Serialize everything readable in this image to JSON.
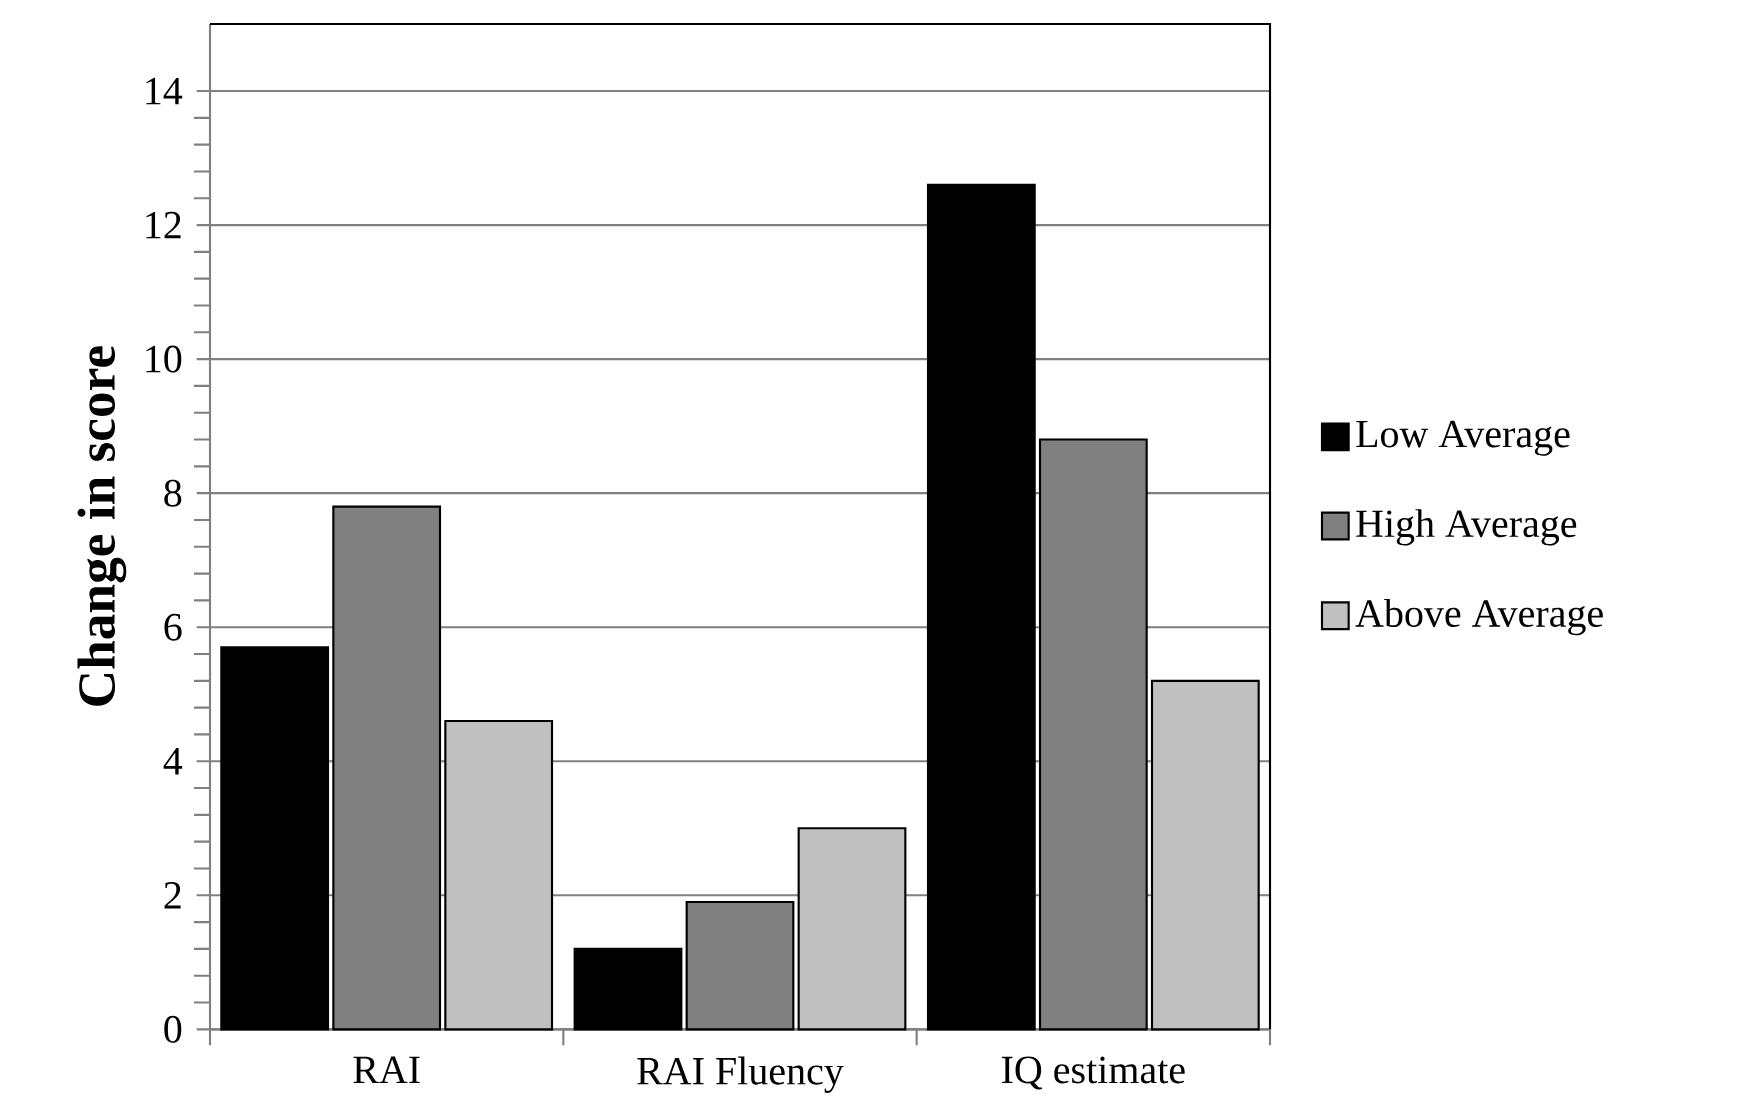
{
  "chart_data": {
    "type": "bar",
    "ylabel": "Change in score",
    "categories": [
      "RAI",
      "RAI Fluency",
      "IQ estimate"
    ],
    "series": [
      {
        "name": "Low Average",
        "color": "#000000",
        "values": [
          5.7,
          1.2,
          12.6
        ]
      },
      {
        "name": "High Average",
        "color": "#808080",
        "values": [
          7.8,
          1.9,
          8.8
        ]
      },
      {
        "name": "Above Average",
        "color": "#c0c0c0",
        "values": [
          4.6,
          3.0,
          5.2
        ]
      }
    ],
    "ylim": [
      0,
      15
    ],
    "yticks": [
      0,
      2,
      4,
      6,
      8,
      10,
      12,
      14
    ],
    "grid": "y",
    "legend": "right"
  }
}
